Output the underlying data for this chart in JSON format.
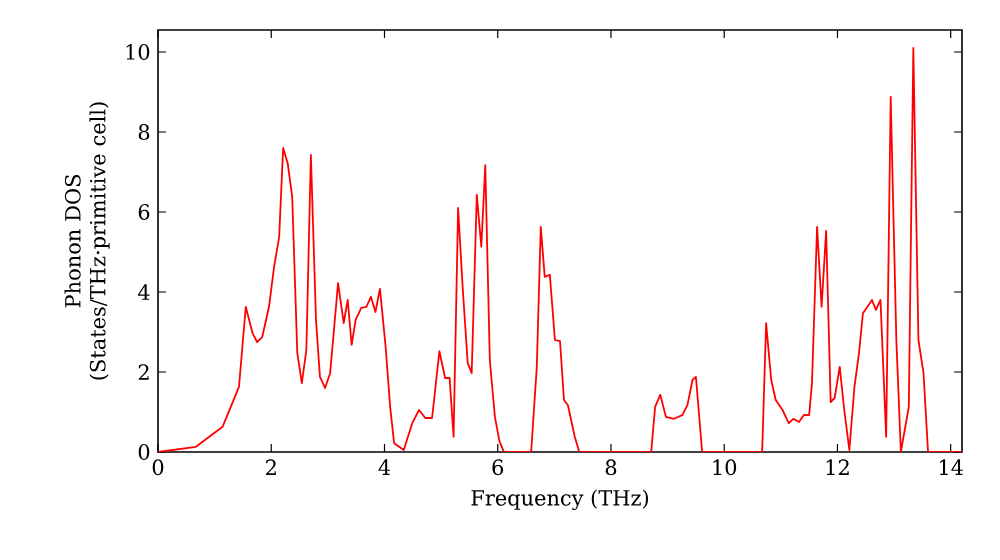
{
  "chart_data": {
    "type": "line",
    "xlabel": "Frequency (THz)",
    "ylabel": "Phonon DOS (States/THz·primitive cell)",
    "xlim": [
      0,
      14.2
    ],
    "ylim": [
      0,
      10.55
    ],
    "xticks": [
      0,
      2,
      4,
      6,
      8,
      10,
      12,
      14
    ],
    "yticks": [
      0,
      2,
      4,
      6,
      8,
      10
    ],
    "marker": "none",
    "line_style": "solid",
    "series": [
      {
        "color": "#ff0000",
        "x": [
          0,
          0.67,
          1.14,
          1.43,
          1.55,
          1.67,
          1.75,
          1.84,
          1.96,
          2.05,
          2.14,
          2.21,
          2.29,
          2.37,
          2.46,
          2.54,
          2.62,
          2.7,
          2.79,
          2.86,
          2.95,
          3.04,
          3.18,
          3.28,
          3.35,
          3.42,
          3.49,
          3.59,
          3.68,
          3.76,
          3.84,
          3.92,
          4.02,
          4.1,
          4.17,
          4.34,
          4.49,
          4.61,
          4.72,
          4.84,
          4.97,
          5.07,
          5.15,
          5.22,
          5.3,
          5.38,
          5.47,
          5.54,
          5.63,
          5.71,
          5.78,
          5.86,
          5.95,
          6.03,
          6.11,
          6.59,
          6.69,
          6.76,
          6.83,
          6.92,
          7.01,
          7.1,
          7.17,
          7.24,
          7.36,
          7.44,
          8.71,
          8.78,
          8.87,
          8.97,
          9.11,
          9.26,
          9.35,
          9.44,
          9.5,
          9.61,
          10.67,
          10.74,
          10.83,
          10.91,
          11.03,
          11.14,
          11.22,
          11.32,
          11.41,
          11.5,
          11.55,
          11.64,
          11.72,
          11.8,
          11.88,
          11.95,
          12.04,
          12.12,
          12.21,
          12.3,
          12.38,
          12.45,
          12.53,
          12.61,
          12.68,
          12.76,
          12.86,
          12.94,
          13.04,
          13.12,
          13.26,
          13.34,
          13.43,
          13.52,
          13.6,
          14.2
        ],
        "values": [
          0,
          0.13,
          0.63,
          1.63,
          3.63,
          2.97,
          2.75,
          2.87,
          3.63,
          4.63,
          5.38,
          7.6,
          7.22,
          6.38,
          2.47,
          1.72,
          2.55,
          7.43,
          3.3,
          1.88,
          1.6,
          1.97,
          4.22,
          3.22,
          3.8,
          2.68,
          3.3,
          3.6,
          3.63,
          3.88,
          3.5,
          4.08,
          2.63,
          1.13,
          0.22,
          0.05,
          0.72,
          1.05,
          0.85,
          0.85,
          2.52,
          1.85,
          1.85,
          0.38,
          6.1,
          4.13,
          2.22,
          1.97,
          6.43,
          5.13,
          7.17,
          2.3,
          0.88,
          0.27,
          0,
          0,
          2.13,
          5.63,
          4.38,
          4.43,
          2.8,
          2.77,
          1.3,
          1.17,
          0.38,
          0,
          0,
          1.13,
          1.43,
          0.88,
          0.83,
          0.92,
          1.17,
          1.8,
          1.88,
          0,
          0,
          3.22,
          1.8,
          1.3,
          1.05,
          0.72,
          0.83,
          0.75,
          0.93,
          0.92,
          1.72,
          5.63,
          3.63,
          5.53,
          1.25,
          1.35,
          2.13,
          1.05,
          0.05,
          1.63,
          2.47,
          3.47,
          3.63,
          3.8,
          3.55,
          3.8,
          0.38,
          8.88,
          2.8,
          0,
          1.13,
          10.1,
          2.8,
          1.97,
          0,
          0
        ]
      }
    ]
  }
}
